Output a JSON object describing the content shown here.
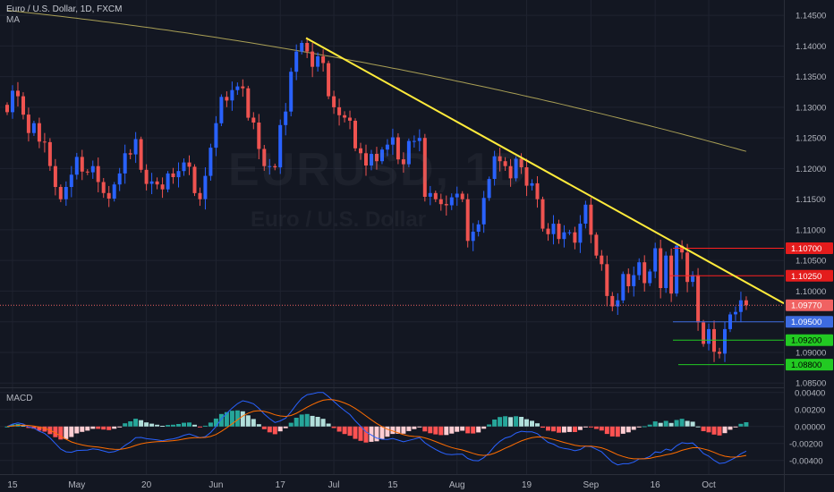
{
  "header": {
    "symbol_title": "Euro / U.S. Dollar, 1D, FXCM",
    "ma_label": "MA"
  },
  "watermark": {
    "symbol": "EURUSD, 1D",
    "description": "Euro / U.S. Dollar"
  },
  "indicator": {
    "macd_label": "MACD"
  },
  "colors": {
    "background": "#131722",
    "up_candle": "#2962ff",
    "down_candle": "#ef5350",
    "moving_average": "#a99f55",
    "trendline": "#ffeb3b",
    "resistance_line": "#ff2020",
    "current_price": "#f06262",
    "support_blue": "#3d6be0",
    "support_green": "#22c922",
    "macd_line": "#2962ff",
    "signal_line": "#ff6d00",
    "hist_up_strong": "#26a69a",
    "hist_up_weak": "#b2dfdb",
    "hist_down_strong": "#ff5252",
    "hist_down_weak": "#ffcdd2"
  },
  "chart_data": [
    {
      "type": "candlestick",
      "title": "Euro / U.S. Dollar, 1D, FXCM",
      "x_tick_labels": [
        "15",
        "May",
        "20",
        "Jun",
        "17",
        "Jul",
        "15",
        "Aug",
        "19",
        "Sep",
        "16",
        "Oct"
      ],
      "y_tick_labels": [
        "1.14500",
        "1.14000",
        "1.13500",
        "1.13000",
        "1.12500",
        "1.12000",
        "1.11500",
        "1.11000",
        "1.10500",
        "1.10000",
        "1.09500",
        "1.09000",
        "1.08500"
      ],
      "ylim": [
        1.0843,
        1.1475
      ],
      "close": [
        1.1292,
        1.1327,
        1.1318,
        1.1288,
        1.1258,
        1.1274,
        1.1244,
        1.1243,
        1.1204,
        1.117,
        1.115,
        1.117,
        1.119,
        1.1219,
        1.1195,
        1.1194,
        1.1204,
        1.1178,
        1.116,
        1.1151,
        1.1174,
        1.1192,
        1.1225,
        1.1223,
        1.1248,
        1.1198,
        1.1175,
        1.1179,
        1.1174,
        1.1166,
        1.1192,
        1.1186,
        1.1196,
        1.121,
        1.1203,
        1.116,
        1.115,
        1.1188,
        1.1234,
        1.1274,
        1.1317,
        1.1311,
        1.1328,
        1.1334,
        1.1331,
        1.1283,
        1.1275,
        1.1232,
        1.1204,
        1.1204,
        1.1202,
        1.1271,
        1.1293,
        1.1358,
        1.1391,
        1.1405,
        1.1391,
        1.1366,
        1.1383,
        1.1372,
        1.1318,
        1.13,
        1.1287,
        1.1283,
        1.1278,
        1.1233,
        1.1225,
        1.1205,
        1.1224,
        1.1212,
        1.1231,
        1.1239,
        1.1251,
        1.1215,
        1.1207,
        1.1245,
        1.1245,
        1.125,
        1.1154,
        1.116,
        1.115,
        1.1142,
        1.114,
        1.1153,
        1.1159,
        1.115,
        1.1082,
        1.1097,
        1.1109,
        1.1152,
        1.1183,
        1.122,
        1.1212,
        1.1204,
        1.1184,
        1.1216,
        1.1202,
        1.1172,
        1.1176,
        1.115,
        1.1102,
        1.1093,
        1.111,
        1.1085,
        1.1096,
        1.1096,
        1.1079,
        1.111,
        1.1141,
        1.1092,
        1.1058,
        1.1044,
        1.0992,
        1.0975,
        1.0985,
        1.1028,
        1.1008,
        1.1026,
        1.1047,
        1.1013,
        1.1032,
        1.107,
        1.1005,
        1.1058,
        1.0996,
        1.1074,
        1.1063,
        1.1015,
        1.1026,
        1.0949,
        1.0914,
        1.0938,
        1.0901,
        1.0898,
        1.0938,
        1.0962,
        1.0966,
        1.0985,
        1.0977
      ],
      "last_price": "1.09770",
      "series": [
        {
          "name": "MA",
          "type": "line",
          "start_value": 1.1458,
          "end_value": 1.1228
        }
      ],
      "price_levels": [
        {
          "value": 1.107,
          "label": "1.10700",
          "kind": "resistance"
        },
        {
          "value": 1.1025,
          "label": "1.10250",
          "kind": "resistance"
        },
        {
          "value": 1.0977,
          "label": "1.09770",
          "kind": "current_price"
        },
        {
          "value": 1.095,
          "label": "1.09500",
          "kind": "support_blue"
        },
        {
          "value": 1.092,
          "label": "1.09200",
          "kind": "support_green"
        },
        {
          "value": 1.088,
          "label": "1.08800",
          "kind": "support_green"
        }
      ],
      "trendline": {
        "start_value": 1.1413,
        "end_value": 1.098
      }
    },
    {
      "type": "line",
      "title": "MACD",
      "y_tick_labels": [
        "0.00400",
        "0.00200",
        "0.00000",
        "-0.00200",
        "-0.00400"
      ],
      "ylim": [
        -0.0056,
        0.0045
      ]
    }
  ]
}
